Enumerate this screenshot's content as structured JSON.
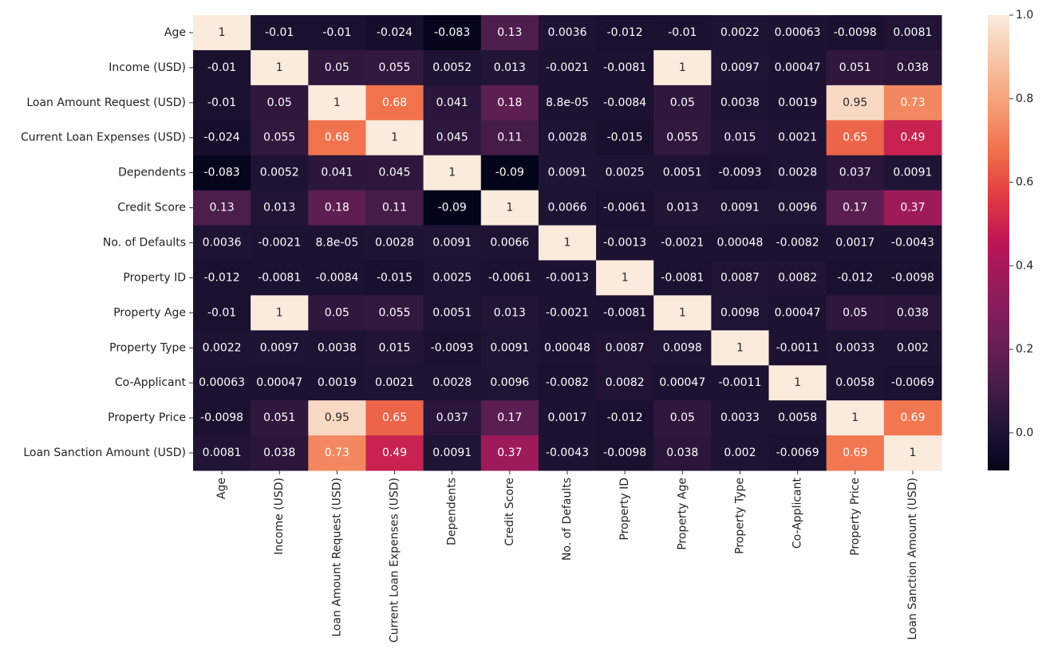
{
  "chart_data": {
    "type": "heatmap",
    "categories": [
      "Age",
      "Income (USD)",
      "Loan Amount Request (USD)",
      "Current Loan Expenses (USD)",
      "Dependents",
      "Credit Score",
      "No. of Defaults",
      "Property ID",
      "Property Age",
      "Property Type",
      "Co-Applicant",
      "Property Price",
      "Loan Sanction Amount (USD)"
    ],
    "values": [
      [
        1,
        -0.01,
        -0.01,
        -0.024,
        -0.083,
        0.13,
        0.0036,
        -0.012,
        -0.01,
        0.0022,
        0.00063,
        -0.0098,
        0.0081
      ],
      [
        -0.01,
        1,
        0.05,
        0.055,
        0.0052,
        0.013,
        -0.0021,
        -0.0081,
        1,
        0.0097,
        0.00047,
        0.051,
        0.038
      ],
      [
        -0.01,
        0.05,
        1,
        0.68,
        0.041,
        0.18,
        8.8e-05,
        -0.0084,
        0.05,
        0.0038,
        0.0019,
        0.95,
        0.73
      ],
      [
        -0.024,
        0.055,
        0.68,
        1,
        0.045,
        0.11,
        0.0028,
        -0.015,
        0.055,
        0.015,
        0.0021,
        0.65,
        0.49
      ],
      [
        -0.083,
        0.0052,
        0.041,
        0.045,
        1,
        -0.09,
        0.0091,
        0.0025,
        0.0051,
        -0.0093,
        0.0028,
        0.037,
        0.0091
      ],
      [
        0.13,
        0.013,
        0.18,
        0.11,
        -0.09,
        1,
        0.0066,
        -0.0061,
        0.013,
        0.0091,
        0.0096,
        0.17,
        0.37
      ],
      [
        0.0036,
        -0.0021,
        8.8e-05,
        0.0028,
        0.0091,
        0.0066,
        1,
        -0.0013,
        -0.0021,
        0.00048,
        -0.0082,
        0.0017,
        -0.0043
      ],
      [
        -0.012,
        -0.0081,
        -0.0084,
        -0.015,
        0.0025,
        -0.0061,
        -0.0013,
        1,
        -0.0081,
        0.0087,
        0.0082,
        -0.012,
        -0.0098
      ],
      [
        -0.01,
        1,
        0.05,
        0.055,
        0.0051,
        0.013,
        -0.0021,
        -0.0081,
        1,
        0.0098,
        0.00047,
        0.05,
        0.038
      ],
      [
        0.0022,
        0.0097,
        0.0038,
        0.015,
        -0.0093,
        0.0091,
        0.00048,
        0.0087,
        0.0098,
        1,
        -0.0011,
        0.0033,
        0.002
      ],
      [
        0.00063,
        0.00047,
        0.0019,
        0.0021,
        0.0028,
        0.0096,
        -0.0082,
        0.0082,
        0.00047,
        -0.0011,
        1,
        0.0058,
        -0.0069
      ],
      [
        -0.0098,
        0.051,
        0.95,
        0.65,
        0.037,
        0.17,
        0.0017,
        -0.012,
        0.05,
        0.0033,
        0.0058,
        1,
        0.69
      ],
      [
        0.0081,
        0.038,
        0.73,
        0.49,
        0.0091,
        0.37,
        -0.0043,
        -0.0098,
        0.038,
        0.002,
        -0.0069,
        0.69,
        1
      ]
    ],
    "value_labels": [
      [
        null,
        null,
        null,
        null,
        null,
        null,
        null,
        null,
        null,
        null,
        null,
        null,
        null
      ],
      [
        null,
        null,
        null,
        null,
        null,
        null,
        null,
        null,
        null,
        null,
        null,
        null,
        null
      ],
      [
        null,
        null,
        null,
        null,
        null,
        null,
        "8.8e-05",
        null,
        null,
        null,
        null,
        null,
        null
      ],
      [
        null,
        null,
        null,
        null,
        null,
        null,
        null,
        null,
        null,
        null,
        null,
        null,
        null
      ],
      [
        null,
        null,
        null,
        null,
        null,
        null,
        null,
        null,
        null,
        null,
        null,
        null,
        null
      ],
      [
        null,
        null,
        null,
        null,
        null,
        null,
        null,
        null,
        null,
        null,
        null,
        null,
        null
      ],
      [
        null,
        null,
        "8.8e-05",
        null,
        null,
        null,
        null,
        null,
        null,
        null,
        null,
        null,
        null
      ],
      [
        null,
        null,
        null,
        null,
        null,
        null,
        null,
        null,
        null,
        null,
        null,
        null,
        null
      ],
      [
        null,
        null,
        null,
        null,
        null,
        null,
        null,
        null,
        null,
        null,
        null,
        null,
        null
      ],
      [
        null,
        null,
        null,
        null,
        null,
        null,
        null,
        null,
        null,
        null,
        null,
        null,
        null
      ],
      [
        null,
        null,
        null,
        null,
        null,
        null,
        null,
        null,
        null,
        null,
        null,
        null,
        null
      ],
      [
        null,
        null,
        null,
        null,
        null,
        null,
        null,
        null,
        null,
        null,
        null,
        null,
        null
      ],
      [
        null,
        null,
        null,
        null,
        null,
        null,
        null,
        null,
        null,
        null,
        null,
        null,
        null
      ]
    ],
    "colormap": "rocket",
    "zlim": [
      -0.09,
      1
    ],
    "zticks": [
      {
        "value": 0,
        "label": "0.0"
      },
      0.2,
      0.4,
      0.6,
      0.8,
      {
        "value": 1,
        "label": "1.0"
      }
    ]
  }
}
